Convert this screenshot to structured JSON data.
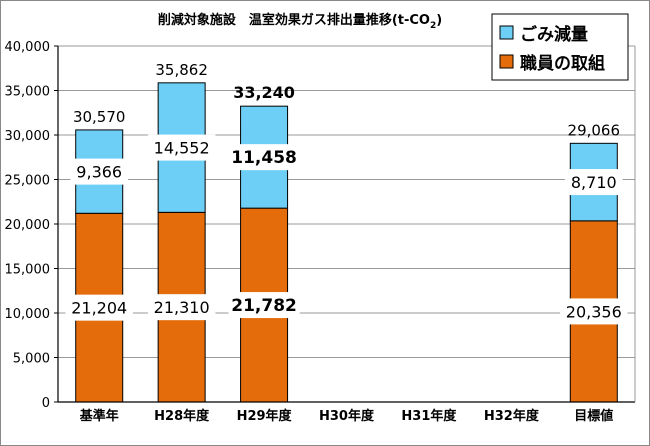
{
  "chart_data": {
    "type": "bar",
    "stacked": true,
    "title": "削減対象施設　温室効果ガス排出量推移(t-CO2)",
    "title_parts": {
      "main": "削減対象施設　温室効果ガス排出量推移(t-CO",
      "subscript": "2",
      "close": ")"
    },
    "categories": [
      "基準年",
      "H28年度",
      "H29年度",
      "H30年度",
      "H31年度",
      "H32年度",
      "目標値"
    ],
    "series": [
      {
        "name": "職員の取組",
        "color": "#e46c0a",
        "values": [
          21204,
          21310,
          21782,
          null,
          null,
          null,
          20356
        ]
      },
      {
        "name": "ごみ減量",
        "color": "#6dcff6",
        "values": [
          9366,
          14552,
          11458,
          null,
          null,
          null,
          8710
        ]
      }
    ],
    "segment_labels": [
      [
        "21,204",
        "21,310",
        "21,782",
        null,
        null,
        null,
        "20,356"
      ],
      [
        "9,366",
        "14,552",
        "11,458",
        null,
        null,
        null,
        "8,710"
      ]
    ],
    "totals": [
      "30,570",
      "35,862",
      "33,240",
      null,
      null,
      null,
      "29,066"
    ],
    "bold_columns": [
      2
    ],
    "yticks": [
      "0",
      "5,000",
      "10,000",
      "15,000",
      "20,000",
      "25,000",
      "30,000",
      "35,000",
      "40,000"
    ],
    "ylim": [
      0,
      40000
    ],
    "ytick_step": 5000,
    "grid": true,
    "legend": {
      "placement": "top-right",
      "order": [
        1,
        0
      ]
    }
  }
}
